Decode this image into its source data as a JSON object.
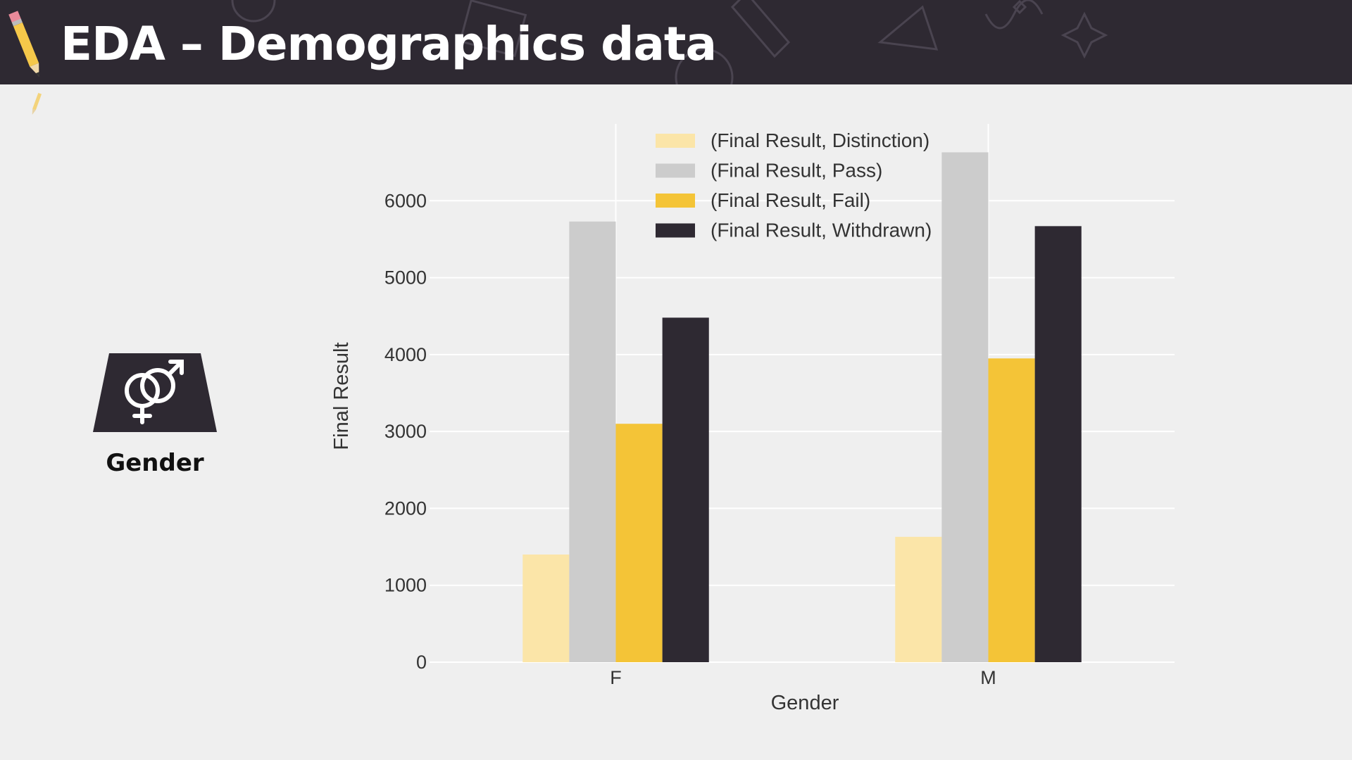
{
  "slide": {
    "title": "EDA – Demographics data"
  },
  "icon_panel": {
    "icon": "gender-symbol-icon",
    "label": "Gender"
  },
  "colors": {
    "header_bg": "#2e2932",
    "distinction": "#fbe5a8",
    "pass": "#cccccc",
    "fail": "#f4c437",
    "withdrawn": "#2e2932"
  },
  "chart_data": {
    "type": "bar",
    "xlabel": "Gender",
    "ylabel": "Final Result",
    "categories": [
      "F",
      "M"
    ],
    "ylim": [
      0,
      7000
    ],
    "yticks": [
      0,
      1000,
      2000,
      3000,
      4000,
      5000,
      6000
    ],
    "grid": true,
    "legend_position": "top-center",
    "series": [
      {
        "name": "(Final Result, Distinction)",
        "values": [
          1400,
          1630
        ],
        "color": "#fbe5a8"
      },
      {
        "name": "(Final Result, Pass)",
        "values": [
          5730,
          6630
        ],
        "color": "#cccccc"
      },
      {
        "name": "(Final Result, Fail)",
        "values": [
          3100,
          3950
        ],
        "color": "#f4c437"
      },
      {
        "name": "(Final Result, Withdrawn)",
        "values": [
          4480,
          5670
        ],
        "color": "#2e2932"
      }
    ]
  }
}
